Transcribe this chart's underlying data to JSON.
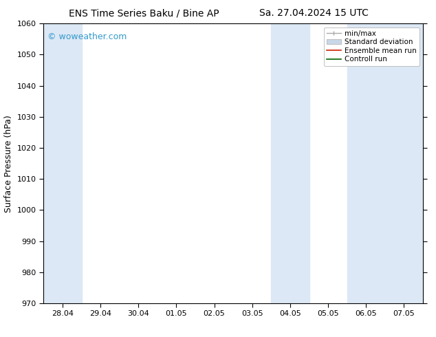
{
  "title_left": "ENS Time Series Baku / Bine AP",
  "title_right": "Sa. 27.04.2024 15 UTC",
  "ylabel": "Surface Pressure (hPa)",
  "ylim": [
    970,
    1060
  ],
  "yticks": [
    970,
    980,
    990,
    1000,
    1010,
    1020,
    1030,
    1040,
    1050,
    1060
  ],
  "xtick_labels": [
    "28.04",
    "29.04",
    "30.04",
    "01.05",
    "02.05",
    "03.05",
    "04.05",
    "05.05",
    "06.05",
    "07.05"
  ],
  "xtick_positions": [
    0,
    1,
    2,
    3,
    4,
    5,
    6,
    7,
    8,
    9
  ],
  "shaded_columns": [
    {
      "xmin": -0.5,
      "xmax": 0.5,
      "color": "#dce8f5"
    },
    {
      "xmin": 5.5,
      "xmax": 6.5,
      "color": "#dce8f5"
    },
    {
      "xmin": 7.5,
      "xmax": 9.5,
      "color": "#dce8f5"
    }
  ],
  "watermark": "© woweather.com",
  "watermark_color": "#3399cc",
  "bg_color": "#ffffff",
  "plot_bg_color": "#ffffff",
  "border_color": "#000000",
  "title_fontsize": 10,
  "ylabel_fontsize": 9,
  "tick_fontsize": 8,
  "legend_fontsize": 7.5
}
